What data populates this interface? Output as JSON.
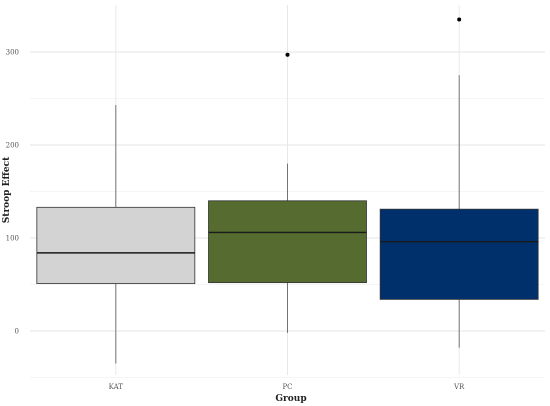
{
  "chart_data": {
    "type": "box",
    "xlabel": "Group",
    "ylabel": "Stroop Effect",
    "ylim": [
      -50,
      335
    ],
    "yticks": [
      0,
      100,
      200,
      300
    ],
    "ytick_labels": [
      "0",
      "100",
      "200",
      "300"
    ],
    "minor_gridlines": [
      -50,
      50,
      150,
      250
    ],
    "grid": true,
    "groups": [
      {
        "label": "KAT",
        "color": "#d3d3d3",
        "whisker_low": -35,
        "q1": 51,
        "median": 84,
        "q3": 133,
        "whisker_high": 243,
        "outliers": []
      },
      {
        "label": "PC",
        "color": "#556b2f",
        "whisker_low": -2,
        "q1": 52,
        "median": 106,
        "q3": 140,
        "whisker_high": 180,
        "outliers": [
          297
        ]
      },
      {
        "label": "VR",
        "color": "#00306b",
        "whisker_low": -18,
        "q1": 34,
        "median": 96,
        "q3": 131,
        "whisker_high": 275,
        "outliers": [
          335
        ]
      }
    ]
  }
}
